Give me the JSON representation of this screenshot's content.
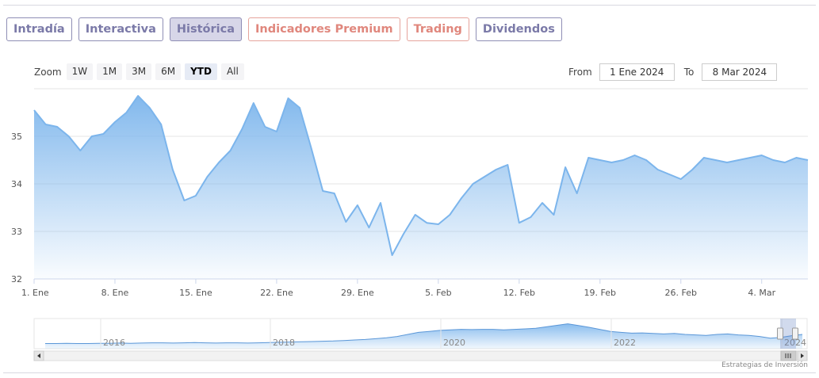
{
  "tabs": [
    {
      "label": "Intradía",
      "style": "purple",
      "active": false
    },
    {
      "label": "Interactiva",
      "style": "purple",
      "active": false
    },
    {
      "label": "Histórica",
      "style": "purple",
      "active": true
    },
    {
      "label": "Indicadores Premium",
      "style": "salmon",
      "active": false
    },
    {
      "label": "Trading",
      "style": "salmon",
      "active": false
    },
    {
      "label": "Dividendos",
      "style": "purple",
      "active": false
    }
  ],
  "zoom": {
    "label": "Zoom",
    "buttons": [
      "1W",
      "1M",
      "3M",
      "6M",
      "YTD",
      "All"
    ],
    "selected": "YTD"
  },
  "range": {
    "from_label": "From",
    "from_value": "1 Ene 2024",
    "to_label": "To",
    "to_value": "8 Mar 2024"
  },
  "credits": "Estrategias de Inversión",
  "colors": {
    "line": "#7cb5ec",
    "accent_purple": "#7b7aa8",
    "accent_salmon": "#e0877d"
  },
  "chart_data": {
    "type": "area",
    "ylim": [
      32,
      36
    ],
    "yticks": [
      32,
      33,
      34,
      35
    ],
    "xlim": [
      "2024-01-01",
      "2024-03-08"
    ],
    "xticks": [
      {
        "date": "2024-01-01",
        "label": "1. Ene"
      },
      {
        "date": "2024-01-08",
        "label": "8. Ene"
      },
      {
        "date": "2024-01-15",
        "label": "15. Ene"
      },
      {
        "date": "2024-01-22",
        "label": "22. Ene"
      },
      {
        "date": "2024-01-29",
        "label": "29. Ene"
      },
      {
        "date": "2024-02-05",
        "label": "5. Feb"
      },
      {
        "date": "2024-02-12",
        "label": "12. Feb"
      },
      {
        "date": "2024-02-19",
        "label": "19. Feb"
      },
      {
        "date": "2024-02-26",
        "label": "26. Feb"
      },
      {
        "date": "2024-03-04",
        "label": "4. Mar"
      }
    ],
    "series": [
      {
        "x": [
          "2024-01-01",
          "2024-01-02",
          "2024-01-03",
          "2024-01-04",
          "2024-01-05",
          "2024-01-06",
          "2024-01-07",
          "2024-01-08",
          "2024-01-09",
          "2024-01-10",
          "2024-01-11",
          "2024-01-12",
          "2024-01-13",
          "2024-01-14",
          "2024-01-15",
          "2024-01-16",
          "2024-01-17",
          "2024-01-18",
          "2024-01-19",
          "2024-01-20",
          "2024-01-21",
          "2024-01-22",
          "2024-01-23",
          "2024-01-24",
          "2024-01-25",
          "2024-01-26",
          "2024-01-27",
          "2024-01-28",
          "2024-01-29",
          "2024-01-30",
          "2024-01-31",
          "2024-02-01",
          "2024-02-02",
          "2024-02-03",
          "2024-02-04",
          "2024-02-05",
          "2024-02-06",
          "2024-02-07",
          "2024-02-08",
          "2024-02-09",
          "2024-02-10",
          "2024-02-11",
          "2024-02-12",
          "2024-02-13",
          "2024-02-14",
          "2024-02-15",
          "2024-02-16",
          "2024-02-17",
          "2024-02-18",
          "2024-02-19",
          "2024-02-20",
          "2024-02-21",
          "2024-02-22",
          "2024-02-23",
          "2024-02-24",
          "2024-02-25",
          "2024-02-26",
          "2024-02-27",
          "2024-02-28",
          "2024-02-29",
          "2024-03-01",
          "2024-03-02",
          "2024-03-03",
          "2024-03-04",
          "2024-03-05",
          "2024-03-06",
          "2024-03-07",
          "2024-03-08"
        ],
        "y": [
          35.55,
          35.25,
          35.2,
          35.0,
          34.7,
          35.0,
          35.05,
          35.3,
          35.5,
          35.85,
          35.6,
          35.25,
          34.3,
          33.65,
          33.75,
          34.15,
          34.45,
          34.7,
          35.15,
          35.7,
          35.2,
          35.1,
          35.8,
          35.6,
          34.75,
          33.85,
          33.8,
          33.2,
          33.55,
          33.08,
          33.6,
          32.5,
          32.95,
          33.35,
          33.18,
          33.15,
          33.35,
          33.7,
          34.0,
          34.15,
          34.3,
          34.4,
          33.18,
          33.3,
          33.6,
          33.35,
          34.35,
          33.8,
          34.55,
          34.5,
          34.45,
          34.5,
          34.6,
          34.5,
          34.3,
          34.2,
          34.1,
          34.3,
          34.55,
          34.5,
          34.45,
          34.5,
          34.55,
          34.6,
          34.5,
          34.45,
          34.55,
          34.5
        ]
      }
    ],
    "navigator": {
      "labels": [
        "2016",
        "2018",
        "2020",
        "2022",
        "2024"
      ],
      "values": [
        0.14,
        0.14,
        0.15,
        0.14,
        0.14,
        0.15,
        0.15,
        0.16,
        0.15,
        0.16,
        0.17,
        0.17,
        0.16,
        0.17,
        0.18,
        0.17,
        0.16,
        0.17,
        0.17,
        0.16,
        0.17,
        0.18,
        0.19,
        0.2,
        0.21,
        0.22,
        0.23,
        0.24,
        0.26,
        0.28,
        0.3,
        0.33,
        0.37,
        0.42,
        0.5,
        0.58,
        0.62,
        0.66,
        0.68,
        0.7,
        0.69,
        0.7,
        0.7,
        0.68,
        0.7,
        0.72,
        0.74,
        0.8,
        0.86,
        0.92,
        0.85,
        0.78,
        0.7,
        0.62,
        0.58,
        0.55,
        0.56,
        0.54,
        0.52,
        0.54,
        0.5,
        0.48,
        0.46,
        0.5,
        0.52,
        0.48,
        0.46,
        0.42,
        0.35,
        0.38,
        0.45,
        0.5
      ]
    }
  }
}
